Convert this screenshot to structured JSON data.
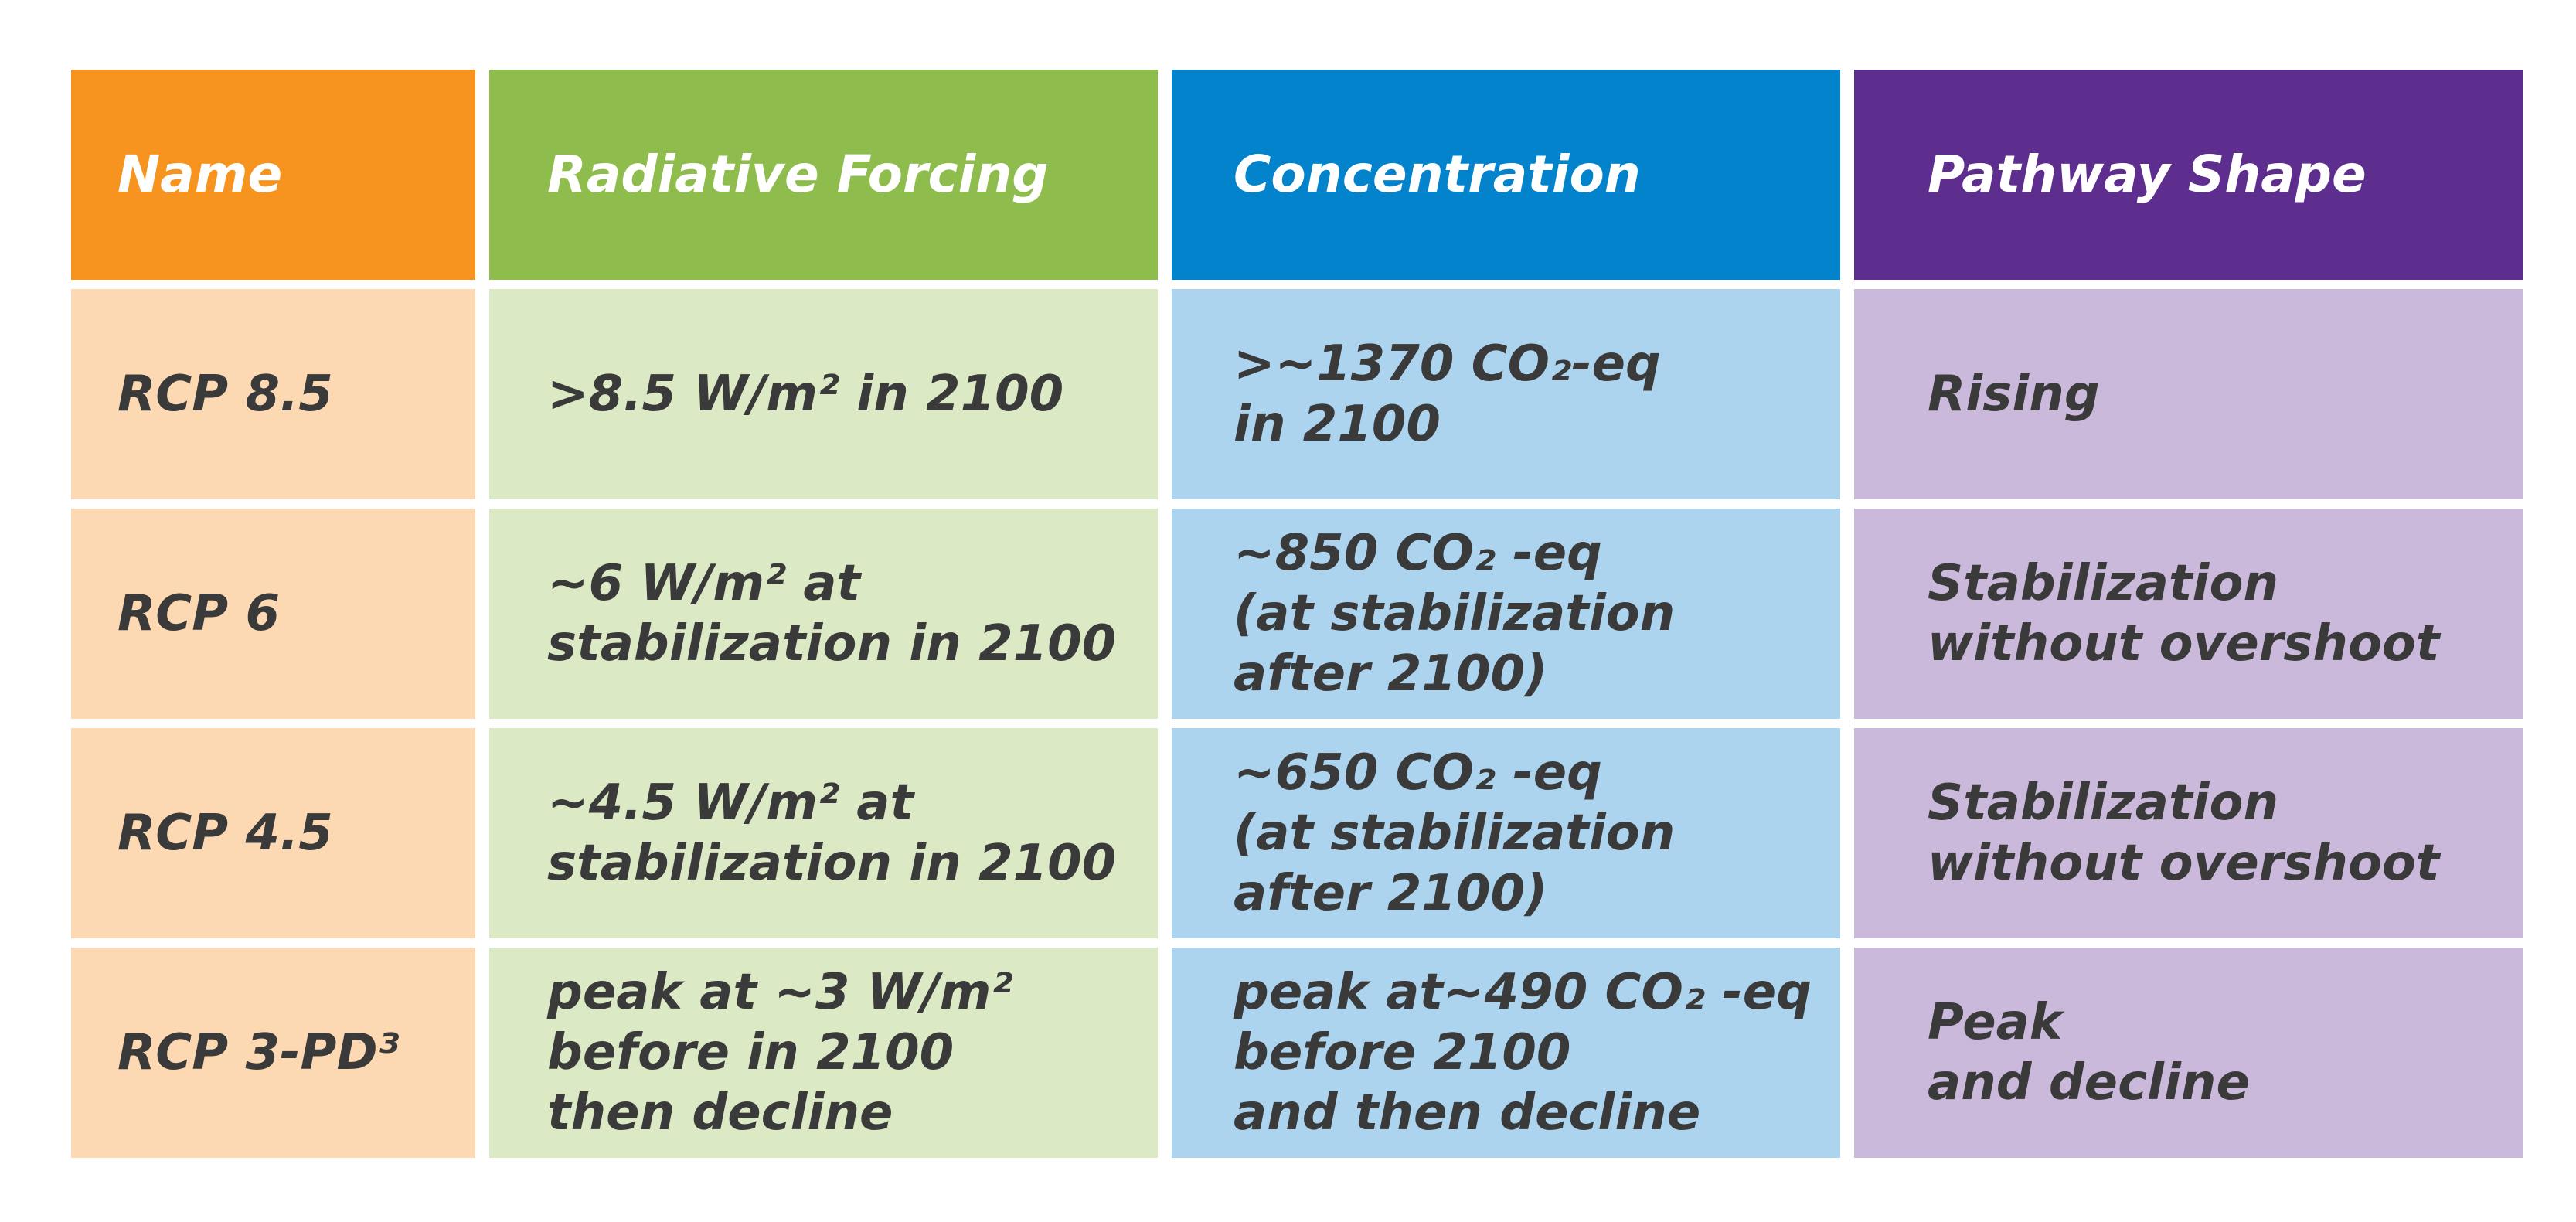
{
  "colors": {
    "name_header": "#F7941F",
    "forcing_header": "#8FBD4D",
    "concentration_header": "#0383CC",
    "shape_header": "#5E2E8E",
    "name_cell": "#FCD9B3",
    "forcing_cell": "#DCE9C5",
    "concentration_cell": "#ADD4EE",
    "shape_cell": "#CBB9DC",
    "body_text": "#3A3A3A",
    "header_text": "#FFFFFF"
  },
  "table": {
    "headers": [
      "Name",
      "Radiative Forcing",
      "Concentration",
      "Pathway Shape"
    ],
    "rows": [
      [
        "RCP 8.5",
        ">8.5 W/m² in 2100",
        ">~1370 CO₂-eq\nin 2100",
        "Rising"
      ],
      [
        "RCP 6",
        "~6 W/m² at\nstabilization in 2100",
        "~850 CO₂ -eq\n(at stabilization\n after 2100)",
        "Stabilization\nwithout overshoot"
      ],
      [
        "RCP 4.5",
        "~4.5 W/m² at\nstabilization in 2100",
        "~650 CO₂ -eq\n(at stabilization\n after 2100)",
        "Stabilization\nwithout overshoot"
      ],
      [
        "RCP 3-PD³",
        "peak at ~3 W/m²\nbefore in 2100\nthen decline",
        "peak at~490 CO₂ -eq\nbefore 2100\nand then decline",
        "Peak\nand decline"
      ]
    ]
  }
}
